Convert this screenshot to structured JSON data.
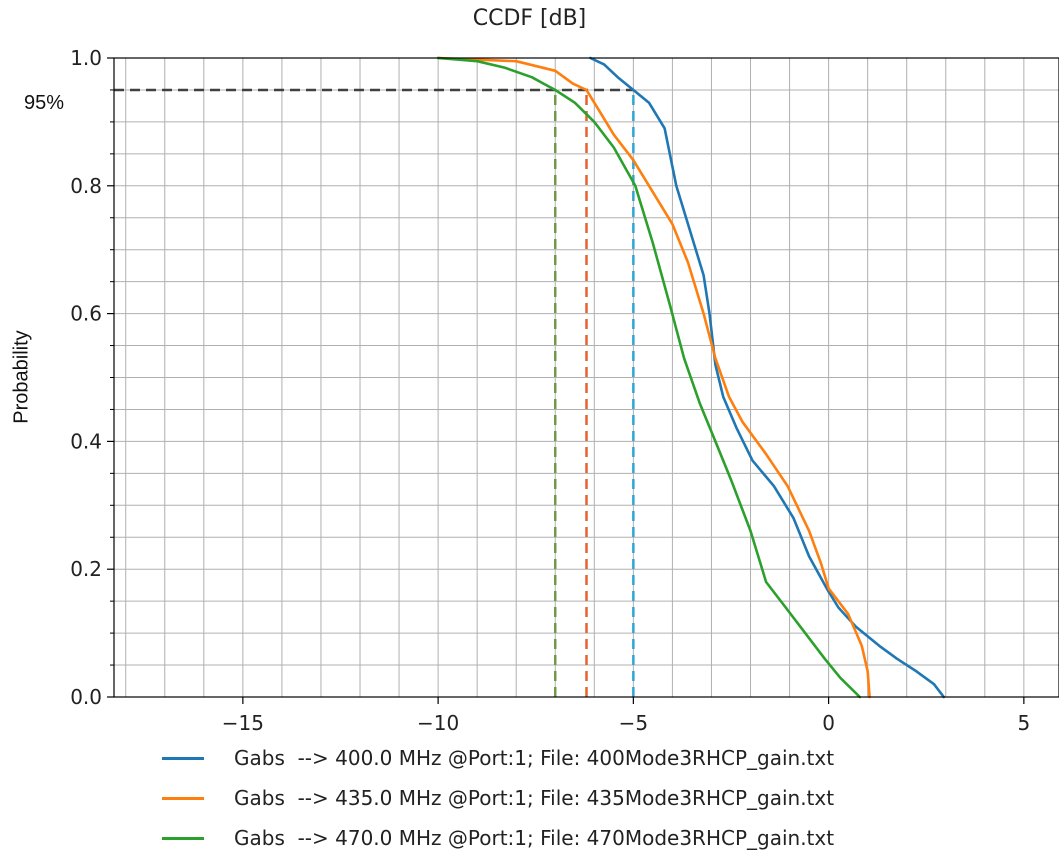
{
  "chart_data": {
    "type": "line",
    "title": "CCDF [dB]",
    "ylabel": "Probability",
    "xlabel": "",
    "xlim": [
      -18.3,
      5.9
    ],
    "ylim": [
      0.0,
      1.0
    ],
    "x_ticks": [
      -15,
      -10,
      -5,
      0,
      5
    ],
    "x_tick_labels": [
      "−15",
      "−10",
      "−5",
      "0",
      "5"
    ],
    "y_ticks": [
      0.0,
      0.2,
      0.4,
      0.6,
      0.8,
      1.0
    ],
    "y_tick_labels": [
      "0.0",
      "0.2",
      "0.4",
      "0.6",
      "0.8",
      "1.0"
    ],
    "grid": true,
    "grid_minor": true,
    "legend_position": "bottom",
    "annotation": "95%",
    "threshold_probability": 0.95,
    "series": [
      {
        "name": "Gabs  --> 400.0 MHz @Port:1; File: 400Mode3RHCP_gain.txt",
        "color": "#1f77b4",
        "x": [
          -6.1,
          -5.75,
          -5.4,
          -5.0,
          -4.6,
          -4.2,
          -3.9,
          -3.5,
          -3.2,
          -3.05,
          -2.9,
          -2.7,
          -2.35,
          -1.95,
          -1.4,
          -0.9,
          -0.5,
          -0.05,
          0.25,
          0.7,
          1.3,
          1.75,
          2.25,
          2.7,
          2.95
        ],
        "y": [
          1.0,
          0.99,
          0.97,
          0.95,
          0.93,
          0.89,
          0.8,
          0.72,
          0.66,
          0.6,
          0.52,
          0.47,
          0.42,
          0.37,
          0.33,
          0.28,
          0.22,
          0.17,
          0.14,
          0.11,
          0.08,
          0.06,
          0.04,
          0.02,
          0.0
        ]
      },
      {
        "name": "Gabs  --> 435.0 MHz @Port:1; File: 435Mode3RHCP_gain.txt",
        "color": "#ff7f0e",
        "x": [
          -10.0,
          -8.0,
          -7.0,
          -6.55,
          -6.2,
          -5.9,
          -5.5,
          -5.0,
          -4.5,
          -4.0,
          -3.6,
          -3.2,
          -2.9,
          -2.55,
          -2.2,
          -1.6,
          -1.05,
          -0.5,
          -0.2,
          0.0,
          0.5,
          0.85,
          1.0,
          1.05
        ],
        "y": [
          1.0,
          0.995,
          0.98,
          0.96,
          0.95,
          0.92,
          0.88,
          0.84,
          0.79,
          0.74,
          0.68,
          0.6,
          0.53,
          0.47,
          0.43,
          0.38,
          0.33,
          0.26,
          0.21,
          0.17,
          0.13,
          0.08,
          0.04,
          0.0
        ]
      },
      {
        "name": "Gabs  --> 470.0 MHz @Port:1; File: 470Mode3RHCP_gain.txt",
        "color": "#2ca02c",
        "x": [
          -10.0,
          -9.0,
          -8.3,
          -7.6,
          -7.3,
          -7.0,
          -6.5,
          -6.0,
          -5.5,
          -4.95,
          -4.5,
          -4.05,
          -3.7,
          -3.3,
          -2.9,
          -2.5,
          -2.0,
          -1.6,
          -1.1,
          -0.6,
          -0.1,
          0.3,
          0.55,
          0.8
        ],
        "y": [
          1.0,
          0.995,
          0.985,
          0.97,
          0.96,
          0.95,
          0.93,
          0.9,
          0.86,
          0.8,
          0.71,
          0.61,
          0.53,
          0.46,
          0.4,
          0.34,
          0.26,
          0.18,
          0.14,
          0.1,
          0.06,
          0.03,
          0.015,
          0.0
        ]
      }
    ],
    "reference_lines": [
      {
        "kind": "horizontal",
        "y": 0.95,
        "x_start": -18.3,
        "x_end": -5.0,
        "color": "#404040"
      },
      {
        "kind": "vertical",
        "x": -7.0,
        "y_end": 0.95,
        "color": "#6f9a48"
      },
      {
        "kind": "vertical",
        "x": -6.2,
        "y_end": 0.95,
        "color": "#e8622a"
      },
      {
        "kind": "vertical",
        "x": -5.0,
        "y_end": 0.95,
        "color": "#31a4d6"
      }
    ]
  }
}
